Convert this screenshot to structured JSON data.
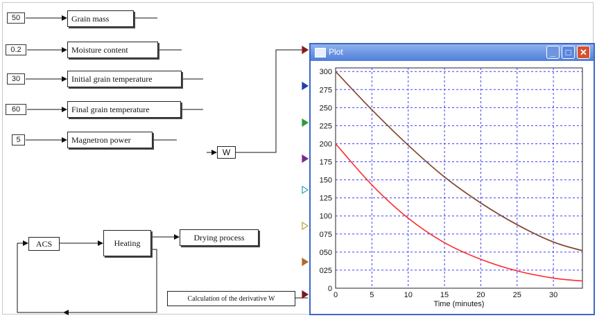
{
  "constants": [
    {
      "value": "50"
    },
    {
      "value": "0.2"
    },
    {
      "value": "30"
    },
    {
      "value": "60"
    },
    {
      "value": "5"
    }
  ],
  "param_blocks": [
    {
      "label": "Grain mass"
    },
    {
      "label": "Moisture content"
    },
    {
      "label": "Initial grain temperature"
    },
    {
      "label": "Final grain temperature"
    },
    {
      "label": "Magnetron power"
    }
  ],
  "w_block": {
    "label": "W"
  },
  "loop_blocks": {
    "acs": "ACS",
    "heating": "Heating",
    "drying": "Drying process",
    "derivative": "Calculation of the derivative W"
  },
  "plot_window": {
    "title": "Plot",
    "min_icon": "minimize-icon",
    "max_icon": "maximize-icon",
    "close_icon": "close-icon",
    "input_port_colors": [
      "#8b1a1a",
      "#1f3fae",
      "#2e9b3a",
      "#7a2a8a",
      "#2ea8b0",
      "#b8a42a",
      "#b06a2a",
      "#7a1a1a"
    ]
  },
  "chart_data": {
    "type": "line",
    "xlabel": "Time (minutes)",
    "ylabel": "",
    "title": "",
    "xlim": [
      0,
      34
    ],
    "ylim": [
      0,
      305
    ],
    "xticks": [
      "0",
      "5",
      "10",
      "15",
      "20",
      "25",
      "30"
    ],
    "yticks": [
      "0",
      "025",
      "050",
      "075",
      "100",
      "125",
      "150",
      "175",
      "200",
      "225",
      "250",
      "275",
      "300"
    ],
    "grid": true,
    "series": [
      {
        "color": "#6b4a2a",
        "x": [
          0,
          5,
          10,
          15,
          20,
          25,
          30,
          34
        ],
        "y": [
          300,
          247,
          198,
          154,
          118,
          88,
          64,
          52
        ]
      },
      {
        "color": "#ff2a2a",
        "x": [
          0,
          5,
          10,
          15,
          20,
          25,
          30,
          34
        ],
        "y": [
          200,
          143,
          97,
          63,
          40,
          24,
          14,
          10
        ]
      }
    ]
  }
}
